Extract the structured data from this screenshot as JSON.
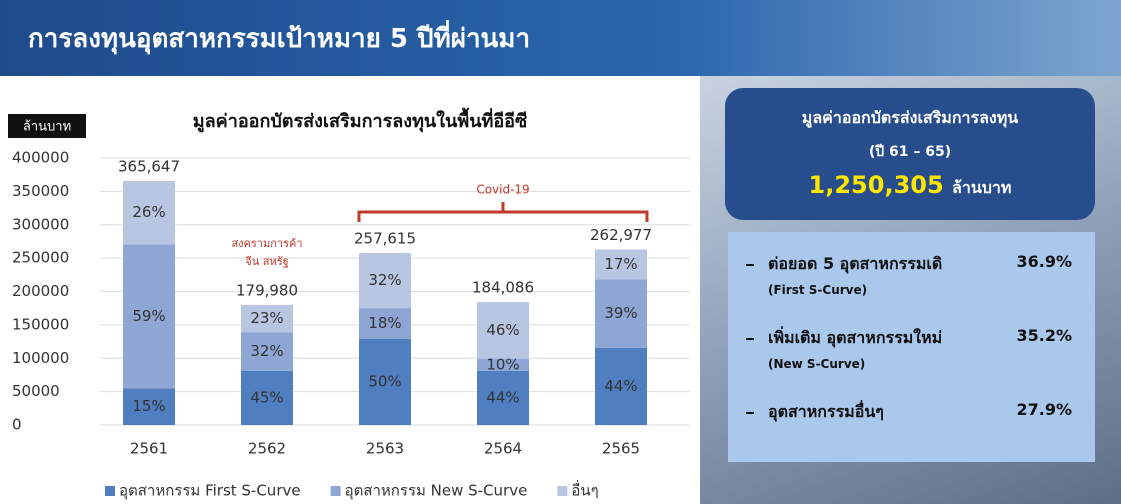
{
  "header": {
    "title": "การลงทุนอุตสาหกรรมเป้าหมาย 5 ปีที่ผ่านมา"
  },
  "chart_data": {
    "type": "bar",
    "stacked": true,
    "title": "มูลค่าออกบัตรส่งเสริมการลงทุนในพื้นที่อีอีซี",
    "y_unit": "ล้านบาท",
    "categories": [
      "2561",
      "2562",
      "2563",
      "2564",
      "2565"
    ],
    "series": [
      {
        "name": "อุตสาหกรรม First S-Curve",
        "color": "#4f7fc0",
        "values": [
          54847,
          80991,
          128808,
          80998,
          115710
        ],
        "share_labels": [
          "15%",
          "45%",
          "50%",
          "44%",
          "44%"
        ]
      },
      {
        "name": "อุตสาหกรรม New S-Curve",
        "color": "#8ea6d4",
        "values": [
          215732,
          57594,
          46371,
          18409,
          102561
        ],
        "share_labels": [
          "59%",
          "32%",
          "18%",
          "10%",
          "39%"
        ]
      },
      {
        "name": "อื่นๆ",
        "color": "#b8c6e2",
        "values": [
          95068,
          41395,
          82437,
          84680,
          44706
        ],
        "share_labels": [
          "26%",
          "23%",
          "32%",
          "46%",
          "17%"
        ]
      }
    ],
    "totals": [
      365647,
      179980,
      257615,
      184086,
      262977
    ],
    "total_labels": [
      "365,647",
      "179,980",
      "257,615",
      "184,086",
      "262,977"
    ],
    "ylim": [
      0,
      400000
    ],
    "yticks": [
      0,
      50000,
      100000,
      150000,
      200000,
      250000,
      300000,
      350000,
      400000
    ],
    "grid": true,
    "legend": "bottom",
    "annotations": [
      {
        "lines": [
          "สงครามการค้า",
          "จีน สหรัฐ"
        ],
        "color": "#c0392b"
      },
      {
        "text": "Covid-19",
        "color": "#c0392b"
      }
    ]
  },
  "summary": {
    "title": "มูลค่าออกบัตรส่งเสริมการลงทุน",
    "period": "(ปี 61 – 65)",
    "total": "1,250,305",
    "unit": "ล้านบาท",
    "items": [
      {
        "label": "ต่อยอด 5 อุตสาหกรรมเดิ",
        "share": "36.9%",
        "sub": "(First S-Curve)"
      },
      {
        "label": "เพิ่มเติม อุตสาหกรรมใหม่",
        "share": "35.2%",
        "sub": "(New S-Curve)"
      },
      {
        "label": "อุตสาหกรรมอื่นๆ",
        "share": "27.9%"
      }
    ]
  }
}
